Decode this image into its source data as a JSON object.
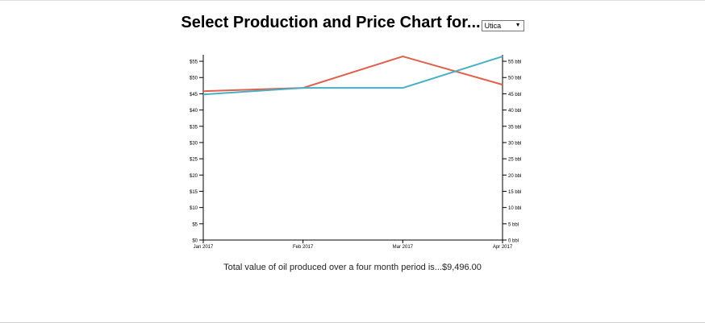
{
  "header": {
    "title": "Select Production and Price Chart for...",
    "selected_play": "Utica"
  },
  "summary": "Total value of oil produced over a four month period is...$9,496.00",
  "colors": {
    "price": "#e0604e",
    "production": "#4aafc6"
  },
  "chart_data": {
    "type": "line",
    "categories": [
      "Jan 2017",
      "Feb 2017",
      "Mar 2017",
      "Apr 2017"
    ],
    "y_left": {
      "ticks": [
        "$0",
        "$5",
        "$10",
        "$15",
        "$20",
        "$25",
        "$30",
        "$35",
        "$40",
        "$45",
        "$50",
        "$55"
      ],
      "range": [
        0,
        57
      ]
    },
    "y_right": {
      "ticks": [
        "0 bbl",
        "5 bbl",
        "10 bbl",
        "15 bbl",
        "20 bbl",
        "25 bbl",
        "30 bbl",
        "35 bbl",
        "40 bbl",
        "45 bbl",
        "50 bbl",
        "55 bbl"
      ],
      "range": [
        0,
        57
      ]
    },
    "series": [
      {
        "axis": "left",
        "values": [
          45.8,
          46.8,
          56.5,
          47.8
        ]
      },
      {
        "axis": "right",
        "values": [
          44.8,
          46.8,
          46.8,
          56.5
        ]
      }
    ],
    "grid": false
  }
}
